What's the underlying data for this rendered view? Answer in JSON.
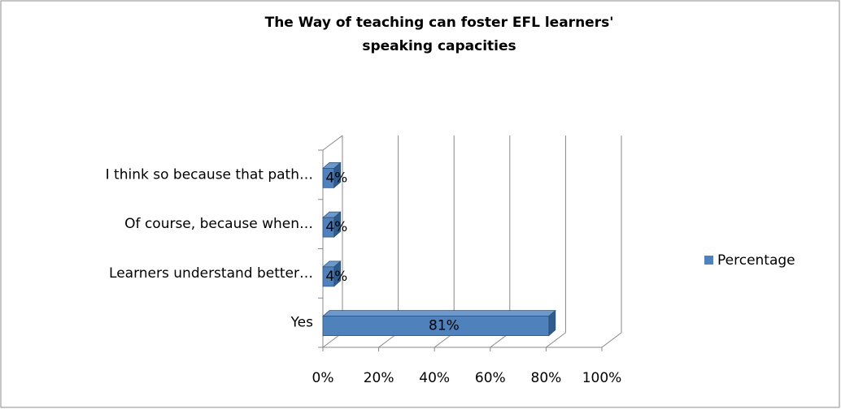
{
  "chart_data": {
    "type": "bar",
    "orientation": "horizontal",
    "title": [
      "The Way of teaching  can foster EFL learners'",
      "speaking  capacities"
    ],
    "categories": [
      "Yes",
      "Learners understand better…",
      "Of course, because when…",
      "I think so because that path…"
    ],
    "series": [
      {
        "name": "Percentage",
        "color": "#4f81bd",
        "values": [
          81,
          4,
          4,
          4
        ],
        "value_labels": [
          "81%",
          "4%",
          "4%",
          "4%"
        ]
      }
    ],
    "xlim": [
      0,
      100
    ],
    "xticks": [
      {
        "value": 0,
        "label": "0%"
      },
      {
        "value": 20,
        "label": "20%"
      },
      {
        "value": 40,
        "label": "40%"
      },
      {
        "value": 60,
        "label": "60%"
      },
      {
        "value": 80,
        "label": "80%"
      },
      {
        "value": 100,
        "label": "100%"
      }
    ],
    "grid": true,
    "legend": "right"
  }
}
